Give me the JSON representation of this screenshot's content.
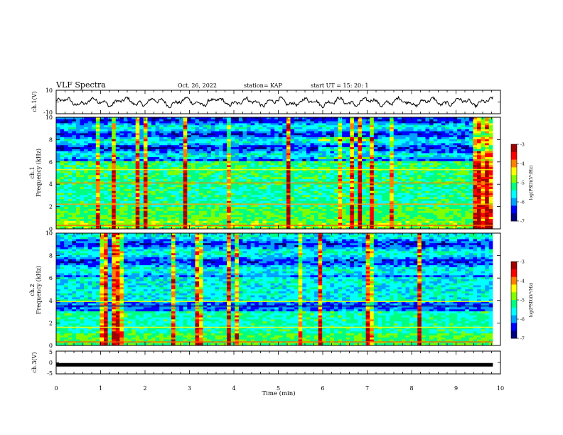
{
  "header": {
    "title": "VLF Spectra",
    "date": "Oct. 26, 2022",
    "station": "station= KAP",
    "start": "start  UT  =   15: 20: 1"
  },
  "chart_data": [
    {
      "type": "line",
      "name": "ch1-waveform",
      "ylabel": "ch.1(V)",
      "ylim": [
        -10,
        10
      ],
      "yticks": [
        "10",
        "-10"
      ],
      "x_range_min": [
        0,
        9.83
      ],
      "amplitude_note": "noisy signal mostly between -5 and +5 V"
    },
    {
      "type": "heatmap",
      "name": "ch1-spectrogram",
      "ylabel": "Frequency (kHz)",
      "channel_label": "ch.1",
      "ylim": [
        0,
        10
      ],
      "yticks": [
        "0",
        "2",
        "4",
        "6",
        "8",
        "10"
      ],
      "x_range_min": [
        0,
        9.83
      ],
      "colorbar": {
        "label": "log(PSD)(V²/Hz)",
        "range": [
          -7,
          -3
        ],
        "ticks": [
          "-3",
          "-4",
          "-5",
          "-6",
          "-7"
        ]
      }
    },
    {
      "type": "heatmap",
      "name": "ch2-spectrogram",
      "ylabel": "Frequency (kHz)",
      "channel_label": "ch.2",
      "ylim": [
        0,
        10
      ],
      "yticks": [
        "0",
        "2",
        "4",
        "6",
        "8",
        "10"
      ],
      "x_range_min": [
        0,
        9.83
      ],
      "colorbar": {
        "label": "log(PSD)(V²/Hz)",
        "range": [
          -7,
          -3
        ],
        "ticks": [
          "-3",
          "-4",
          "-5",
          "-6",
          "-7"
        ]
      }
    },
    {
      "type": "line",
      "name": "ch3-waveform",
      "ylabel": "ch.3(V)",
      "ylim": [
        -5,
        5
      ],
      "yticks": [
        "5",
        "0",
        "-5"
      ],
      "x_range_min": [
        0,
        9.83
      ],
      "level_note": "flat thick line at about -1 V"
    }
  ],
  "xaxis": {
    "label": "Time  (min)",
    "range": [
      0,
      10
    ],
    "ticks": [
      "0",
      "1",
      "2",
      "3",
      "4",
      "5",
      "6",
      "7",
      "8",
      "9",
      "10"
    ]
  },
  "colors": {
    "waveform": "#000000",
    "cmap": [
      "#000080",
      "#0000ff",
      "#00a0ff",
      "#00ffff",
      "#00ff80",
      "#80ff00",
      "#ffff00",
      "#ff8000",
      "#ff0000",
      "#a00000"
    ]
  }
}
